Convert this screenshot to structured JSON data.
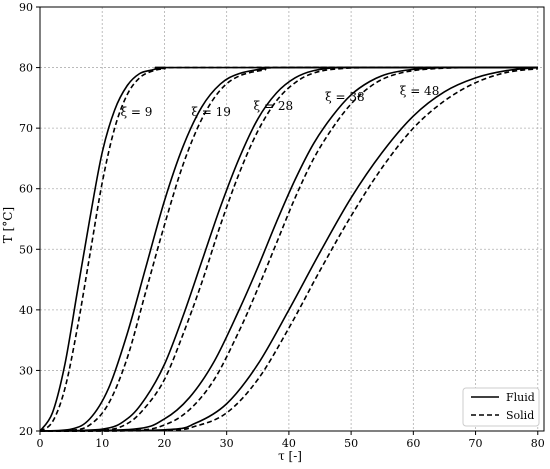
{
  "chart_data": {
    "type": "line",
    "title": "",
    "xlabel": "τ [-]",
    "ylabel": "T [°C]",
    "xlim": [
      0,
      81
    ],
    "ylim": [
      20,
      90
    ],
    "xticks": [
      0,
      10,
      20,
      30,
      40,
      50,
      60,
      70,
      80
    ],
    "yticks": [
      20,
      30,
      40,
      50,
      60,
      70,
      80,
      90
    ],
    "grid": true,
    "legend_position": "bottom-right",
    "legend": [
      {
        "label": "Fluid",
        "style": "solid"
      },
      {
        "label": "Solid",
        "style": "dashed"
      }
    ],
    "annotations": [
      {
        "text": "ξ = 9",
        "x": 15.5,
        "y": 72
      },
      {
        "text": "ξ = 19",
        "x": 27.5,
        "y": 72
      },
      {
        "text": "ξ = 28",
        "x": 37.5,
        "y": 73
      },
      {
        "text": "ξ = 38",
        "x": 49,
        "y": 74.5
      },
      {
        "text": "ξ = 48",
        "x": 61,
        "y": 75.5
      }
    ],
    "series": [
      {
        "name": "Fluid",
        "style": "solid",
        "x": [
          0,
          2,
          4,
          6,
          8,
          10,
          12,
          14,
          16,
          18,
          20,
          24,
          80
        ],
        "y": [
          20,
          23,
          31,
          43,
          55,
          66,
          73,
          77,
          79,
          79.6,
          80,
          80,
          80
        ]
      },
      {
        "name": "Solid",
        "style": "dashed",
        "x": [
          0,
          2,
          4,
          6,
          8,
          10,
          12,
          14,
          16,
          18,
          20,
          24,
          80
        ],
        "y": [
          20,
          21.5,
          27,
          37,
          49,
          61,
          70,
          75.5,
          78.3,
          79.4,
          79.8,
          80,
          80
        ]
      },
      {
        "name": "Fluid",
        "style": "solid",
        "x": [
          0,
          5,
          8,
          11,
          14,
          17,
          20,
          23,
          26,
          29,
          32,
          36,
          40,
          80
        ],
        "y": [
          20,
          20.3,
          22,
          27,
          36,
          47,
          58,
          67,
          73.5,
          77.3,
          79,
          79.8,
          80,
          80
        ]
      },
      {
        "name": "Solid",
        "style": "dashed",
        "x": [
          0,
          5,
          8,
          11,
          14,
          17,
          20,
          23,
          26,
          29,
          32,
          36,
          40,
          80
        ],
        "y": [
          20,
          20.1,
          21,
          24.5,
          32,
          43,
          54,
          64,
          71.5,
          76.3,
          78.6,
          79.6,
          80,
          80
        ]
      },
      {
        "name": "Fluid",
        "style": "solid",
        "x": [
          0,
          10,
          14,
          17,
          20,
          23,
          26,
          29,
          32,
          35,
          38,
          41,
          44,
          48,
          55,
          80
        ],
        "y": [
          20,
          20.3,
          22,
          25.5,
          31,
          39,
          48,
          57,
          65,
          71.5,
          75.8,
          78.3,
          79.5,
          80,
          80,
          80
        ]
      },
      {
        "name": "Solid",
        "style": "dashed",
        "x": [
          0,
          10,
          14,
          17,
          20,
          23,
          26,
          29,
          32,
          35,
          38,
          41,
          44,
          48,
          55,
          80
        ],
        "y": [
          20,
          20.1,
          21.2,
          24,
          28.5,
          36,
          44.5,
          54,
          62.5,
          69.5,
          74.5,
          77.5,
          79.1,
          79.8,
          80,
          80
        ]
      },
      {
        "name": "Fluid",
        "style": "solid",
        "x": [
          0,
          15,
          20,
          24,
          28,
          32,
          35,
          38,
          41,
          44,
          47,
          50,
          53,
          56,
          60,
          65,
          70,
          80
        ],
        "y": [
          20,
          20.3,
          22,
          25.5,
          31.5,
          40,
          47,
          54.5,
          61.5,
          67.5,
          72,
          75.5,
          77.7,
          79,
          79.7,
          80,
          80,
          80
        ]
      },
      {
        "name": "Solid",
        "style": "dashed",
        "x": [
          0,
          15,
          20,
          24,
          28,
          32,
          35,
          38,
          41,
          44,
          47,
          50,
          53,
          56,
          60,
          65,
          70,
          80
        ],
        "y": [
          20,
          20.1,
          21,
          23.5,
          28.5,
          36.5,
          43.5,
          51,
          58.5,
          65,
          70,
          74,
          76.8,
          78.5,
          79.5,
          79.9,
          80,
          80
        ]
      },
      {
        "name": "Fluid",
        "style": "solid",
        "x": [
          0,
          20,
          25,
          30,
          35,
          40,
          45,
          50,
          55,
          60,
          65,
          70,
          75,
          80
        ],
        "y": [
          20,
          20.2,
          21.3,
          24.5,
          31,
          40,
          49.5,
          58.5,
          66,
          72,
          76,
          78.3,
          79.5,
          80
        ]
      },
      {
        "name": "Solid",
        "style": "dashed",
        "x": [
          0,
          20,
          25,
          30,
          35,
          40,
          45,
          50,
          55,
          60,
          65,
          70,
          75,
          80
        ],
        "y": [
          20,
          20.1,
          20.8,
          23,
          28.5,
          37,
          46.5,
          55.5,
          63.5,
          70,
          74.5,
          77.5,
          79.2,
          79.8
        ]
      }
    ]
  }
}
